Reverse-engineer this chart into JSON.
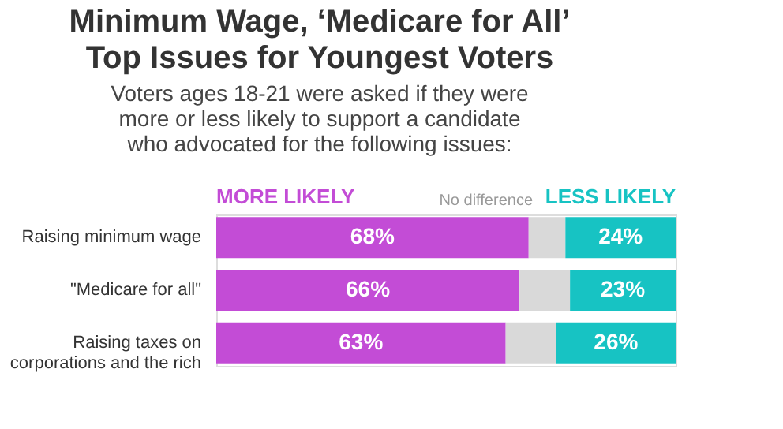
{
  "chart_data": {
    "type": "bar",
    "orientation": "horizontal",
    "stacked": true,
    "legend": "top",
    "title": "Minimum Wage, ‘Medicare for All’ Top Issues for Youngest Voters",
    "subtitle": "Voters ages 18-21 were asked if they were more or less likely to support a candidate who advocated for the following issues:",
    "categories": [
      "Raising minimum wage",
      "\"Medicare for all\"",
      "Raising taxes on corporations and the rich"
    ],
    "xlim": [
      0,
      100
    ],
    "series": [
      {
        "name": "MORE LIKELY",
        "color": "#c34cd6",
        "values": [
          68,
          66,
          63
        ],
        "value_labels": [
          "68%",
          "66%",
          "63%"
        ]
      },
      {
        "name": "No difference",
        "color": "#d9d9d9",
        "values": [
          8,
          11,
          11
        ],
        "value_labels": [
          null,
          null,
          null
        ]
      },
      {
        "name": "LESS LIKELY",
        "color": "#17c3c3",
        "values": [
          24,
          23,
          26
        ],
        "value_labels": [
          "24%",
          "23%",
          "26%"
        ]
      }
    ]
  }
}
